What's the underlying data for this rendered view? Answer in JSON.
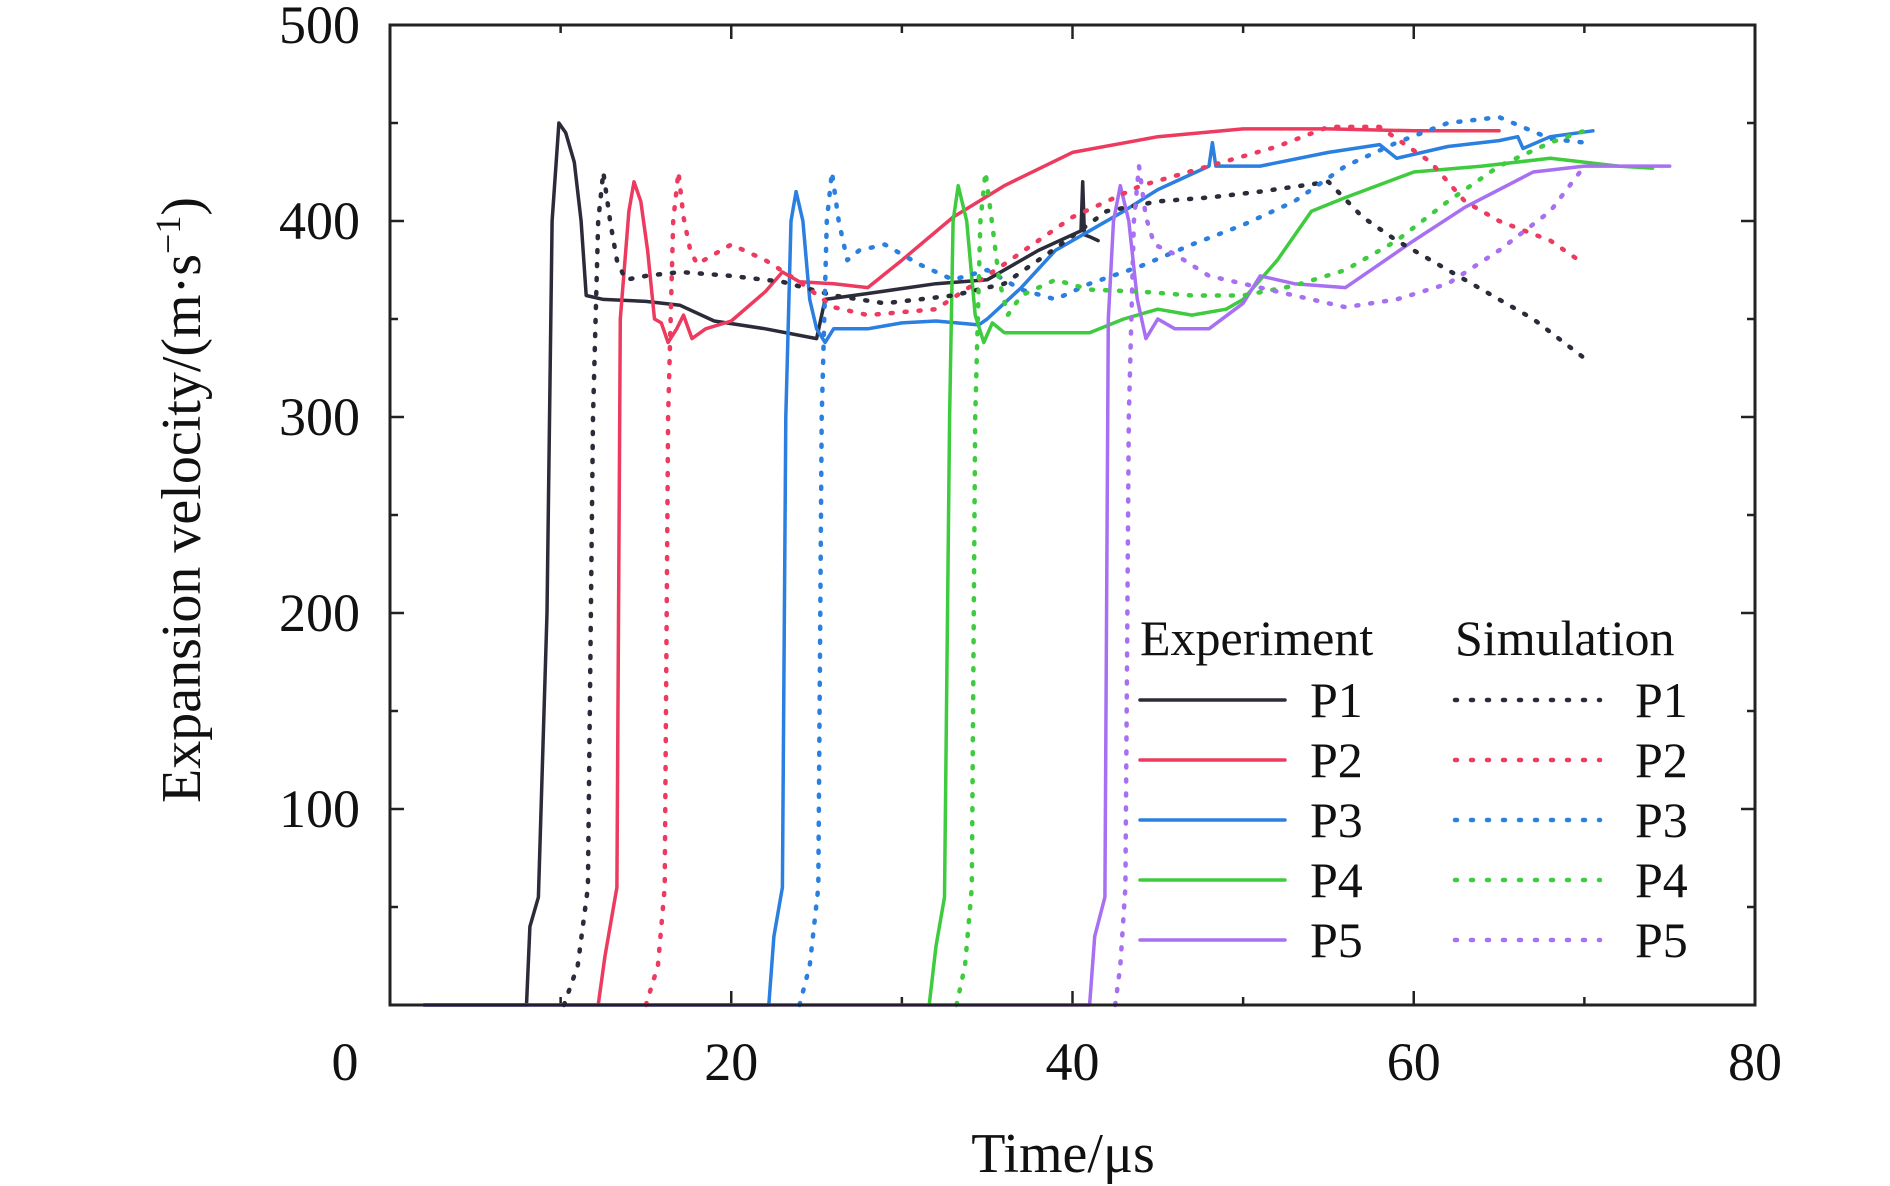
{
  "chart_data": {
    "type": "line",
    "xlabel": "Time/μs",
    "ylabel_main": "Expansion velocity/(m·s",
    "ylabel_sup": "−1",
    "ylabel_close": ")",
    "xlim": [
      0,
      80
    ],
    "ylim": [
      0,
      500
    ],
    "x_ticks": [
      0,
      20,
      40,
      60,
      80
    ],
    "x_tick_labels": [
      "0",
      "20",
      "40",
      "60",
      "80"
    ],
    "y_ticks": [
      100,
      200,
      300,
      400,
      500
    ],
    "y_tick_labels": [
      "100",
      "200",
      "300",
      "400",
      "500"
    ],
    "grid": false,
    "legend": {
      "placement": "lower-right",
      "groups": [
        {
          "title": "Experiment",
          "style": "solid",
          "labels": [
            "P1",
            "P2",
            "P3",
            "P4",
            "P5"
          ]
        },
        {
          "title": "Simulation",
          "style": "dotted",
          "labels": [
            "P1",
            "P2",
            "P3",
            "P4",
            "P5"
          ]
        }
      ]
    },
    "colors": {
      "P1": "#2b2b3a",
      "P2": "#ec3b5e",
      "P3": "#2a7fe0",
      "P4": "#3ecb3e",
      "P5": "#a76ff2"
    },
    "series": [
      {
        "group": "Experiment",
        "name": "P1",
        "style": "solid",
        "color": "#2b2b3a",
        "points": [
          [
            2,
            0
          ],
          [
            8,
            0
          ],
          [
            8.2,
            40
          ],
          [
            8.7,
            55
          ],
          [
            9.2,
            200
          ],
          [
            9.5,
            400
          ],
          [
            9.9,
            450
          ],
          [
            10.3,
            445
          ],
          [
            10.8,
            430
          ],
          [
            11.2,
            400
          ],
          [
            11.5,
            362
          ],
          [
            12.5,
            360
          ],
          [
            15,
            359
          ],
          [
            17,
            357
          ],
          [
            19,
            349
          ],
          [
            22,
            345
          ],
          [
            25,
            340
          ],
          [
            25.5,
            360
          ],
          [
            28,
            363
          ],
          [
            32,
            368
          ],
          [
            35,
            370
          ],
          [
            38,
            385
          ],
          [
            40.5,
            395
          ],
          [
            40.6,
            420
          ],
          [
            40.7,
            393
          ],
          [
            41,
            392
          ],
          [
            41.5,
            390
          ]
        ]
      },
      {
        "group": "Experiment",
        "name": "P2",
        "style": "solid",
        "color": "#ec3b5e",
        "points": [
          [
            12.2,
            0
          ],
          [
            12.6,
            25
          ],
          [
            13.3,
            60
          ],
          [
            13.5,
            350
          ],
          [
            14,
            405
          ],
          [
            14.3,
            420
          ],
          [
            14.7,
            410
          ],
          [
            15.1,
            385
          ],
          [
            15.5,
            350
          ],
          [
            15.9,
            348
          ],
          [
            16.3,
            338
          ],
          [
            16.8,
            345
          ],
          [
            17.2,
            352
          ],
          [
            17.7,
            340
          ],
          [
            18.5,
            345
          ],
          [
            20,
            349
          ],
          [
            22,
            364
          ],
          [
            23,
            374
          ],
          [
            24,
            369
          ],
          [
            26,
            368
          ],
          [
            28,
            366
          ],
          [
            30,
            380
          ],
          [
            33,
            402
          ],
          [
            36,
            418
          ],
          [
            40,
            435
          ],
          [
            45,
            443
          ],
          [
            50,
            447
          ],
          [
            55,
            447
          ],
          [
            60,
            446
          ],
          [
            65,
            446
          ]
        ]
      },
      {
        "group": "Experiment",
        "name": "P3",
        "style": "solid",
        "color": "#2a7fe0",
        "points": [
          [
            2,
            0
          ],
          [
            22.2,
            0
          ],
          [
            22.5,
            35
          ],
          [
            23,
            60
          ],
          [
            23.2,
            300
          ],
          [
            23.5,
            400
          ],
          [
            23.8,
            415
          ],
          [
            24.2,
            400
          ],
          [
            24.6,
            360
          ],
          [
            25,
            345
          ],
          [
            25.5,
            338
          ],
          [
            26,
            345
          ],
          [
            28,
            345
          ],
          [
            30,
            348
          ],
          [
            32,
            349
          ],
          [
            34.5,
            347
          ],
          [
            35,
            350
          ],
          [
            37,
            366
          ],
          [
            39,
            385
          ],
          [
            41,
            395
          ],
          [
            43,
            405
          ],
          [
            45,
            416
          ],
          [
            48,
            428
          ],
          [
            48.2,
            440
          ],
          [
            48.4,
            428
          ],
          [
            51,
            428
          ],
          [
            55,
            435
          ],
          [
            58,
            439
          ],
          [
            59,
            432
          ],
          [
            62,
            438
          ],
          [
            65,
            441
          ],
          [
            66.1,
            443
          ],
          [
            66.4,
            437
          ],
          [
            68,
            443
          ],
          [
            70.5,
            446
          ]
        ]
      },
      {
        "group": "Experiment",
        "name": "P4",
        "style": "solid",
        "color": "#3ecb3e",
        "points": [
          [
            31.6,
            0
          ],
          [
            32,
            30
          ],
          [
            32.5,
            55
          ],
          [
            32.8,
            300
          ],
          [
            33,
            400
          ],
          [
            33.3,
            418
          ],
          [
            33.8,
            400
          ],
          [
            34.3,
            352
          ],
          [
            34.8,
            338
          ],
          [
            35.3,
            348
          ],
          [
            36,
            343
          ],
          [
            38,
            343
          ],
          [
            41,
            343
          ],
          [
            43,
            350
          ],
          [
            45,
            355
          ],
          [
            47,
            352
          ],
          [
            49,
            355
          ],
          [
            50,
            360
          ],
          [
            52,
            380
          ],
          [
            54,
            405
          ],
          [
            56,
            412
          ],
          [
            60,
            425
          ],
          [
            64,
            428
          ],
          [
            68,
            432
          ],
          [
            72,
            428
          ],
          [
            74,
            427
          ]
        ]
      },
      {
        "group": "Experiment",
        "name": "P5",
        "style": "solid",
        "color": "#a76ff2",
        "points": [
          [
            2,
            0
          ],
          [
            41,
            0
          ],
          [
            41.3,
            35
          ],
          [
            41.9,
            55
          ],
          [
            42.1,
            350
          ],
          [
            42.4,
            400
          ],
          [
            42.8,
            418
          ],
          [
            43.3,
            400
          ],
          [
            43.8,
            360
          ],
          [
            44.3,
            340
          ],
          [
            45,
            350
          ],
          [
            46,
            345
          ],
          [
            48,
            345
          ],
          [
            50,
            358
          ],
          [
            51,
            372
          ],
          [
            53,
            368
          ],
          [
            56,
            366
          ],
          [
            60,
            390
          ],
          [
            63,
            407
          ],
          [
            67,
            425
          ],
          [
            70,
            428
          ],
          [
            75,
            428
          ]
        ]
      },
      {
        "group": "Simulation",
        "name": "P1",
        "style": "dotted",
        "color": "#2b2b3a",
        "points": [
          [
            10.2,
            0
          ],
          [
            11,
            20
          ],
          [
            11.6,
            60
          ],
          [
            11.9,
            300
          ],
          [
            12.2,
            400
          ],
          [
            12.5,
            425
          ],
          [
            12.9,
            400
          ],
          [
            13.3,
            380
          ],
          [
            13.8,
            370
          ],
          [
            15,
            372
          ],
          [
            17,
            374
          ],
          [
            20,
            372
          ],
          [
            23,
            369
          ],
          [
            26,
            362
          ],
          [
            29,
            358
          ],
          [
            33,
            362
          ],
          [
            36,
            368
          ],
          [
            39,
            386
          ],
          [
            42,
            405
          ],
          [
            45,
            410
          ],
          [
            48,
            412
          ],
          [
            51,
            415
          ],
          [
            55,
            420
          ],
          [
            57,
            402
          ],
          [
            59,
            390
          ],
          [
            61,
            380
          ],
          [
            64,
            365
          ],
          [
            67,
            350
          ],
          [
            70,
            330
          ]
        ]
      },
      {
        "group": "Simulation",
        "name": "P2",
        "style": "dotted",
        "color": "#ec3b5e",
        "points": [
          [
            15,
            0
          ],
          [
            15.7,
            20
          ],
          [
            16.1,
            60
          ],
          [
            16.3,
            300
          ],
          [
            16.6,
            400
          ],
          [
            16.9,
            425
          ],
          [
            17.2,
            402
          ],
          [
            17.6,
            385
          ],
          [
            18,
            378
          ],
          [
            20,
            388
          ],
          [
            22,
            380
          ],
          [
            24,
            369
          ],
          [
            26,
            356
          ],
          [
            28,
            352
          ],
          [
            32,
            355
          ],
          [
            36,
            378
          ],
          [
            40,
            402
          ],
          [
            44,
            418
          ],
          [
            48,
            428
          ],
          [
            52,
            438
          ],
          [
            55,
            448
          ],
          [
            58,
            448
          ],
          [
            61,
            430
          ],
          [
            63,
            410
          ],
          [
            65,
            400
          ],
          [
            68,
            390
          ],
          [
            70,
            378
          ]
        ]
      },
      {
        "group": "Simulation",
        "name": "P3",
        "style": "dotted",
        "color": "#2a7fe0",
        "points": [
          [
            24,
            0
          ],
          [
            24.6,
            20
          ],
          [
            25.1,
            60
          ],
          [
            25.3,
            300
          ],
          [
            25.6,
            400
          ],
          [
            25.9,
            425
          ],
          [
            26.3,
            400
          ],
          [
            26.8,
            380
          ],
          [
            27.5,
            385
          ],
          [
            29,
            388
          ],
          [
            31,
            378
          ],
          [
            33,
            370
          ],
          [
            35,
            375
          ],
          [
            37,
            365
          ],
          [
            39,
            360
          ],
          [
            41,
            368
          ],
          [
            44,
            377
          ],
          [
            47,
            388
          ],
          [
            50,
            398
          ],
          [
            53,
            410
          ],
          [
            56,
            428
          ],
          [
            59,
            440
          ],
          [
            62,
            450
          ],
          [
            65,
            453
          ],
          [
            68,
            442
          ],
          [
            70,
            440
          ]
        ]
      },
      {
        "group": "Simulation",
        "name": "P4",
        "style": "dotted",
        "color": "#3ecb3e",
        "points": [
          [
            33.2,
            0
          ],
          [
            33.7,
            20
          ],
          [
            34.1,
            60
          ],
          [
            34.3,
            300
          ],
          [
            34.6,
            400
          ],
          [
            34.9,
            425
          ],
          [
            35.3,
            398
          ],
          [
            35.7,
            370
          ],
          [
            36.2,
            352
          ],
          [
            37,
            362
          ],
          [
            39,
            370
          ],
          [
            41,
            365
          ],
          [
            44,
            364
          ],
          [
            47,
            362
          ],
          [
            50,
            362
          ],
          [
            53,
            367
          ],
          [
            56,
            375
          ],
          [
            59,
            390
          ],
          [
            62,
            410
          ],
          [
            65,
            428
          ],
          [
            68,
            440
          ],
          [
            70,
            446
          ]
        ]
      },
      {
        "group": "Simulation",
        "name": "P5",
        "style": "dotted",
        "color": "#a76ff2",
        "points": [
          [
            42.5,
            0
          ],
          [
            42.8,
            20
          ],
          [
            43.1,
            60
          ],
          [
            43.3,
            300
          ],
          [
            43.6,
            400
          ],
          [
            43.9,
            428
          ],
          [
            44.3,
            402
          ],
          [
            44.8,
            388
          ],
          [
            46,
            383
          ],
          [
            48,
            372
          ],
          [
            50,
            368
          ],
          [
            53,
            362
          ],
          [
            56,
            356
          ],
          [
            59,
            360
          ],
          [
            62,
            368
          ],
          [
            65,
            385
          ],
          [
            68,
            405
          ],
          [
            70,
            428
          ]
        ]
      }
    ]
  }
}
